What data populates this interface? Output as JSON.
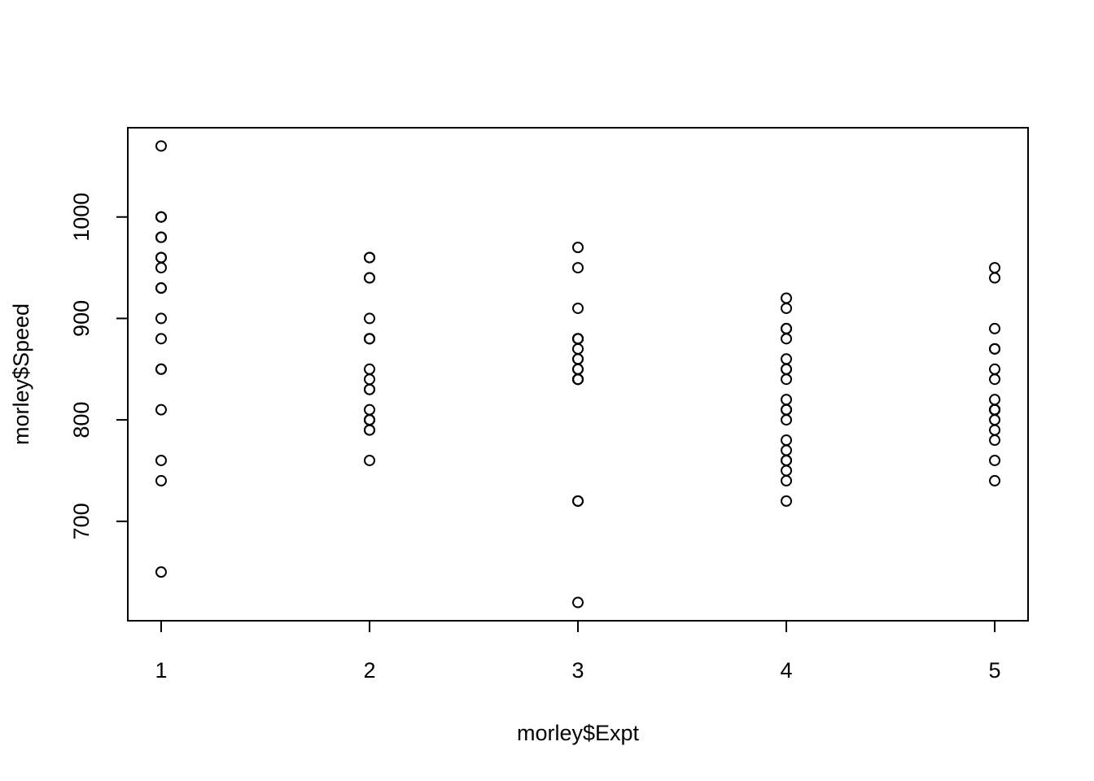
{
  "chart_data": {
    "type": "scatter",
    "xlabel": "morley$Expt",
    "ylabel": "morley$Speed",
    "xlim": [
      0.84,
      5.16
    ],
    "ylim": [
      602,
      1088
    ],
    "x_ticks": [
      1,
      2,
      3,
      4,
      5
    ],
    "y_ticks": [
      700,
      800,
      900,
      1000
    ],
    "grid": false,
    "legend": "none",
    "marker": "open-circle",
    "colors": {
      "points": "#000000",
      "axes": "#000000",
      "background": "#ffffff"
    },
    "series": [
      {
        "x": [
          1,
          1,
          1,
          1,
          1,
          1,
          1,
          1,
          1,
          1,
          1,
          1,
          1,
          1,
          1,
          1,
          1,
          1,
          1,
          1,
          2,
          2,
          2,
          2,
          2,
          2,
          2,
          2,
          2,
          2,
          2,
          2,
          2,
          2,
          2,
          2,
          2,
          2,
          2,
          2,
          3,
          3,
          3,
          3,
          3,
          3,
          3,
          3,
          3,
          3,
          3,
          3,
          3,
          3,
          3,
          3,
          3,
          3,
          3,
          3,
          4,
          4,
          4,
          4,
          4,
          4,
          4,
          4,
          4,
          4,
          4,
          4,
          4,
          4,
          4,
          4,
          4,
          4,
          4,
          4,
          5,
          5,
          5,
          5,
          5,
          5,
          5,
          5,
          5,
          5,
          5,
          5,
          5,
          5,
          5,
          5,
          5,
          5,
          5,
          5
        ],
        "y": [
          850,
          740,
          900,
          1070,
          930,
          850,
          950,
          980,
          980,
          880,
          1000,
          980,
          930,
          650,
          760,
          810,
          1000,
          1000,
          960,
          960,
          960,
          940,
          960,
          940,
          880,
          800,
          850,
          880,
          900,
          840,
          830,
          790,
          810,
          880,
          880,
          830,
          800,
          790,
          760,
          800,
          880,
          880,
          880,
          860,
          720,
          720,
          620,
          860,
          970,
          950,
          880,
          910,
          850,
          870,
          840,
          840,
          850,
          840,
          840,
          840,
          890,
          810,
          810,
          820,
          800,
          770,
          760,
          740,
          750,
          760,
          910,
          920,
          890,
          860,
          880,
          720,
          840,
          850,
          850,
          780,
          890,
          840,
          780,
          810,
          760,
          810,
          790,
          810,
          820,
          850,
          870,
          870,
          810,
          740,
          810,
          940,
          950,
          800,
          810,
          870
        ]
      }
    ]
  }
}
